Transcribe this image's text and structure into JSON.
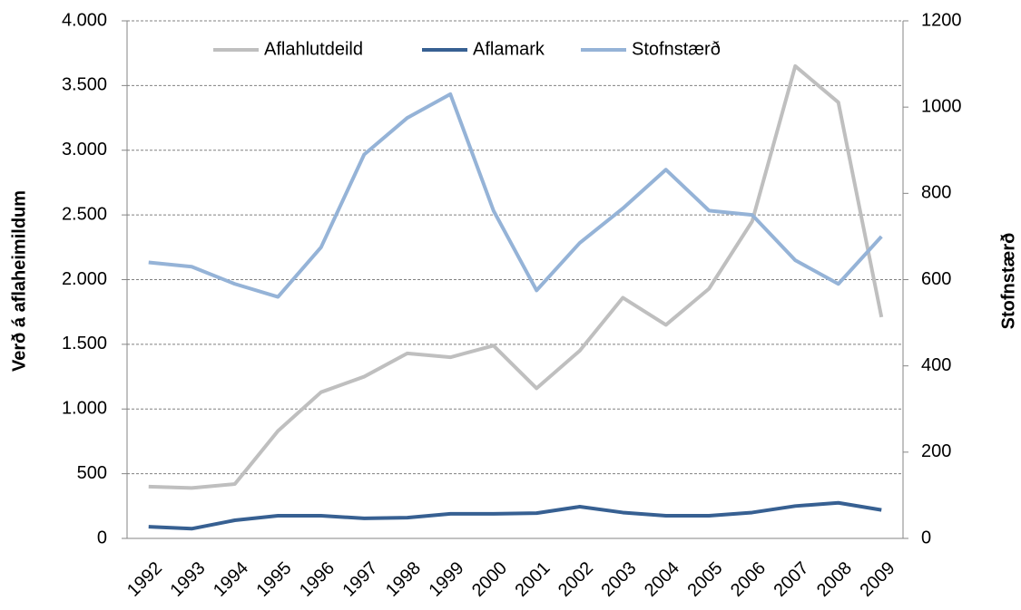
{
  "chart_data": {
    "type": "line",
    "y_label": "Verð á aflaheimildum",
    "y2_label": "Stofnstærð",
    "categories": [
      "1992",
      "1993",
      "1994",
      "1995",
      "1996",
      "1997",
      "1998",
      "1999",
      "2000",
      "2001",
      "2002",
      "2003",
      "2004",
      "2005",
      "2006",
      "2007",
      "2008",
      "2009"
    ],
    "series": [
      {
        "name": "Aflahlutdeild",
        "color": "#bfbfbf",
        "values": [
          400,
          390,
          420,
          830,
          1130,
          1250,
          1430,
          1400,
          1490,
          1160,
          1450,
          1860,
          1650,
          1930,
          2450,
          3650,
          3370,
          1710
        ]
      },
      {
        "name": "Aflamark",
        "color": "#376092",
        "values": [
          90,
          75,
          140,
          175,
          175,
          155,
          160,
          190,
          190,
          195,
          245,
          200,
          175,
          175,
          200,
          250,
          275,
          220
        ]
      },
      {
        "name": "Stofnstærð",
        "color": "#95b3d7",
        "axis": "y2",
        "values": [
          640,
          630,
          590,
          560,
          675,
          890,
          975,
          1030,
          760,
          575,
          685,
          765,
          855,
          760,
          750,
          645,
          590,
          700
        ]
      }
    ],
    "ylim": [
      0,
      4000
    ],
    "yticks": [
      0,
      500,
      {
        "value": 1000,
        "label": "1.000"
      },
      {
        "value": 1500,
        "label": "1.500"
      },
      {
        "value": 2000,
        "label": "2.000"
      },
      {
        "value": 2500,
        "label": "2.500"
      },
      {
        "value": 3000,
        "label": "3.000"
      },
      {
        "value": 3500,
        "label": "3.500"
      },
      {
        "value": 4000,
        "label": "4.000"
      }
    ],
    "y2lim": [
      0,
      1200
    ],
    "y2ticks": [
      0,
      200,
      400,
      600,
      800,
      1000,
      1200
    ],
    "grid": true,
    "legend": "top"
  }
}
